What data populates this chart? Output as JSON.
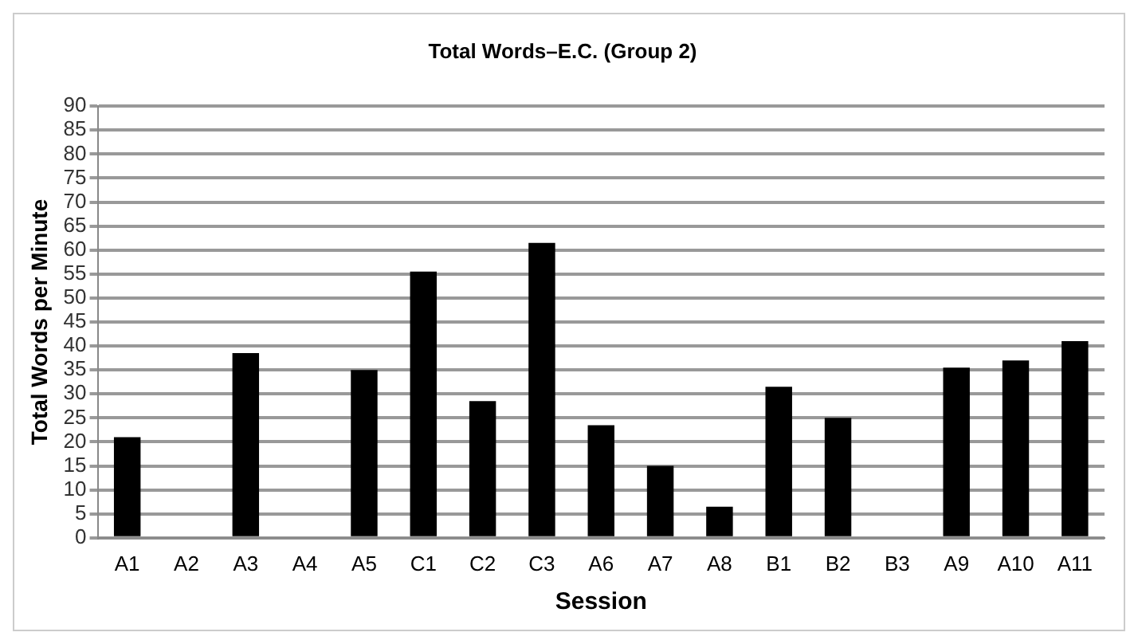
{
  "chart_data": {
    "type": "bar",
    "title": "Total Words–E.C. (Group 2)",
    "xlabel": "Session",
    "ylabel": "Total Words per Minute",
    "categories": [
      "A1",
      "A2",
      "A3",
      "A4",
      "A5",
      "C1",
      "C2",
      "C3",
      "A6",
      "A7",
      "A8",
      "B1",
      "B2",
      "B3",
      "A9",
      "A10",
      "A11"
    ],
    "values": [
      21,
      null,
      38.5,
      null,
      35,
      55.5,
      28.5,
      61.5,
      23.5,
      15,
      6.5,
      31.5,
      25,
      null,
      35.5,
      37,
      41
    ],
    "color": "#000000",
    "ylim": [
      0,
      90
    ],
    "yticks": [
      0,
      5,
      10,
      15,
      20,
      25,
      30,
      35,
      40,
      45,
      50,
      55,
      60,
      65,
      70,
      75,
      80,
      85,
      90
    ],
    "grid": "y"
  }
}
